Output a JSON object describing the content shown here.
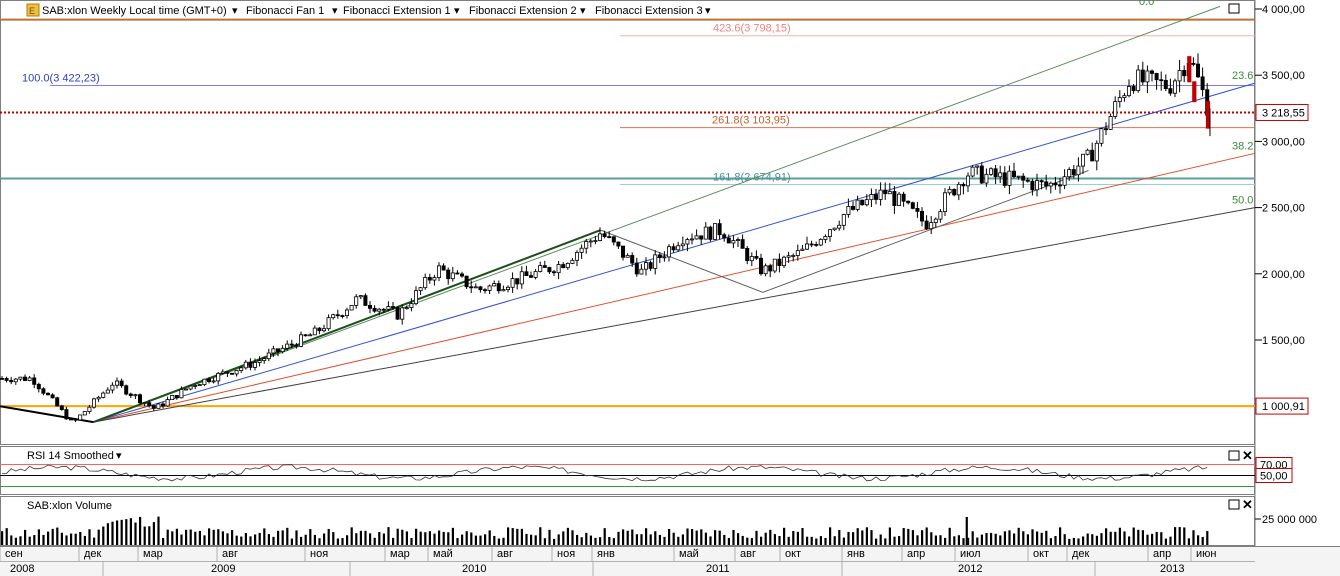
{
  "header": {
    "symbol_title": "SAB:xlon Weekly Local time (GMT+0)",
    "menu_items": [
      "Fibonacci Fan 1",
      "Fibonacci Extension 1",
      "Fibonacci Extension 2",
      "Fibonacci Extension 3"
    ]
  },
  "price_axis": {
    "ticks": [
      "4 000,00",
      "3 500,00",
      "3 000,00",
      "2 500,00",
      "2 000,00",
      "1 500,00"
    ],
    "current_price_label": "3 218,55",
    "support_label": "1 000,91"
  },
  "fib_labels": {
    "retracement_top": "100.0(3 422,23)",
    "ext_4236": "423.6(3 798,15)",
    "ext_2618": "261.8(3 103,95)",
    "ext_1618": "161.8(2 674,91)",
    "fan_0": "0.0",
    "fan_236": "23.6",
    "fan_382": "38.2",
    "fan_50": "50.0"
  },
  "rsi": {
    "title": "RSI 14 Smoothed",
    "upper_label": "70,00",
    "lower_label": "50,00"
  },
  "volume": {
    "title": "SAB:xlon Volume",
    "axis_label": "25 000 000"
  },
  "time_axis": {
    "months": [
      "сен",
      "дек",
      "мар",
      "авг",
      "ноя",
      "мар",
      "май",
      "авг",
      "ноя",
      "янв",
      "май",
      "авг",
      "окт",
      "янв",
      "апр",
      "июл",
      "окт",
      "дек",
      "апр",
      "июн"
    ],
    "years": [
      "2008",
      "2009",
      "2010",
      "2011",
      "2012",
      "2013"
    ]
  },
  "colors": {
    "price_line": "#c00000",
    "support_line": "#ffa500",
    "fib_ext_line": "#e07050",
    "teal_line": "#5a9e9e",
    "fan_green": "#5a8a5a",
    "fan_blue": "#3050d0",
    "fan_red": "#e05030",
    "fan_black": "#404040",
    "rsi_band": "#ff6060"
  },
  "chart_data": {
    "type": "candlestick",
    "title": "",
    "ylim": [
      750,
      4020
    ],
    "series": [
      {
        "name": "SAB:xlon",
        "points": [
          {
            "x": "2008-08",
            "y": 1210
          },
          {
            "x": "2008-10",
            "y": 870
          },
          {
            "x": "2008-12",
            "y": 1180
          },
          {
            "x": "2009-02",
            "y": 980
          },
          {
            "x": "2009-04",
            "y": 1170
          },
          {
            "x": "2009-07",
            "y": 1330
          },
          {
            "x": "2009-10",
            "y": 1560
          },
          {
            "x": "2009-12",
            "y": 1810
          },
          {
            "x": "2010-02",
            "y": 1690
          },
          {
            "x": "2010-04",
            "y": 2040
          },
          {
            "x": "2010-06",
            "y": 1880
          },
          {
            "x": "2010-08",
            "y": 1960
          },
          {
            "x": "2010-10",
            "y": 2070
          },
          {
            "x": "2010-12",
            "y": 2310
          },
          {
            "x": "2011-02",
            "y": 2010
          },
          {
            "x": "2011-04",
            "y": 2280
          },
          {
            "x": "2011-06",
            "y": 2330
          },
          {
            "x": "2011-08",
            "y": 2020
          },
          {
            "x": "2011-10",
            "y": 2170
          },
          {
            "x": "2011-12",
            "y": 2450
          },
          {
            "x": "2012-02",
            "y": 2620
          },
          {
            "x": "2012-04",
            "y": 2380
          },
          {
            "x": "2012-06",
            "y": 2760
          },
          {
            "x": "2012-08",
            "y": 2720
          },
          {
            "x": "2012-10",
            "y": 2660
          },
          {
            "x": "2012-12",
            "y": 2870
          },
          {
            "x": "2013-02",
            "y": 3470
          },
          {
            "x": "2013-04",
            "y": 3420
          },
          {
            "x": "2013-05",
            "y": 3640
          },
          {
            "x": "2013-06",
            "y": 3218.55
          }
        ]
      }
    ],
    "horizontal_levels": [
      3422.23,
      3798.15,
      3103.95,
      2674.91,
      1000.91,
      3218.55,
      3920
    ]
  }
}
